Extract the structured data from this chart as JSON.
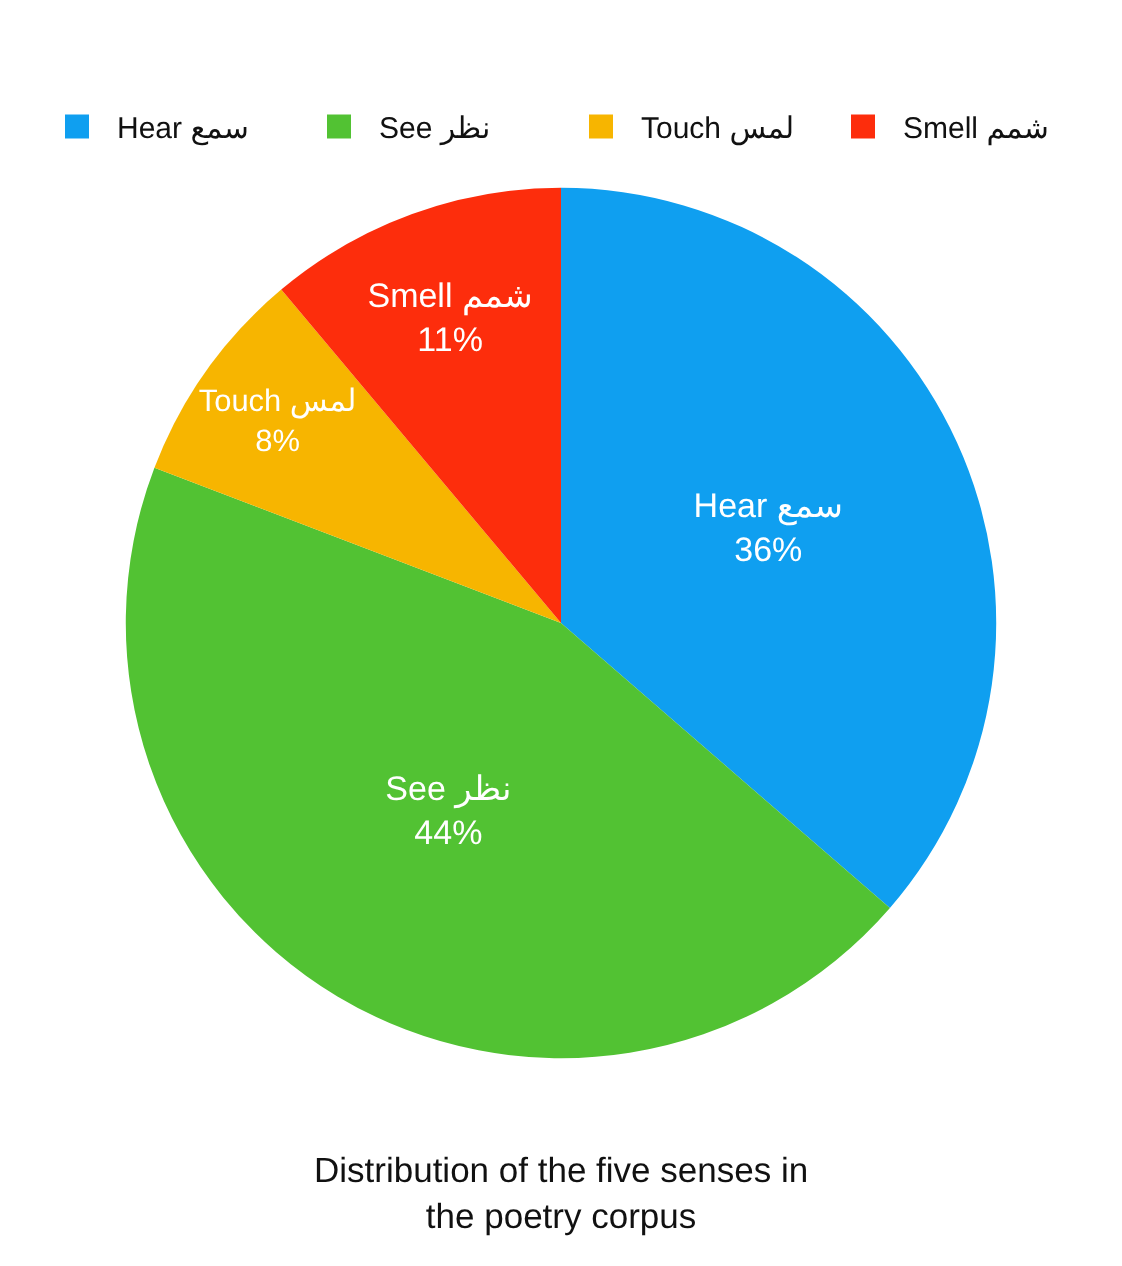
{
  "chart_data": {
    "type": "pie",
    "title": "Distribution of the five senses in the poetry corpus",
    "categories": [
      "Hear سمع",
      "See نظر",
      "Touch لمس",
      "Smell شمم"
    ],
    "values": [
      36,
      44,
      8,
      11
    ],
    "value_labels": [
      "36%",
      "44%",
      "8%",
      "11%"
    ],
    "colors": [
      "#0f9ff0",
      "#52c233",
      "#f7b500",
      "#fd2d0c"
    ],
    "legend": "top"
  }
}
